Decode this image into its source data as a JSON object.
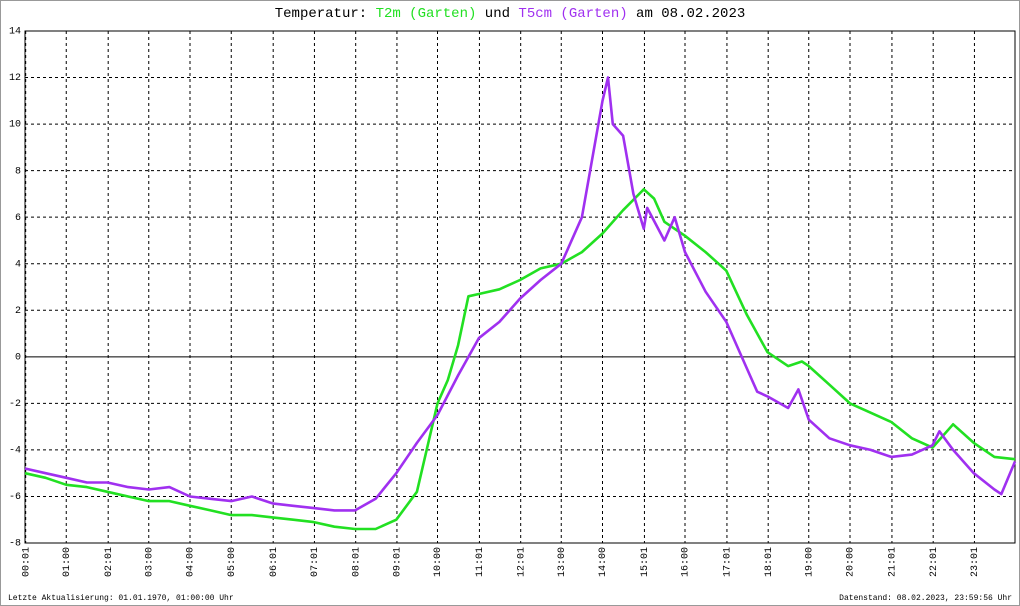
{
  "chart_data": {
    "type": "line",
    "title": "Temperatur:",
    "title_joiner": "und",
    "title_suffix": "am 08.02.2023",
    "footer_left": "Letzte Aktualisierung: 01.01.1970, 01:00:00 Uhr",
    "footer_right": "Datenstand: 08.02.2023, 23:59:56 Uhr",
    "xlim": [
      0,
      1440
    ],
    "ylim": [
      -8,
      14
    ],
    "yticks": [
      -8,
      -6,
      -4,
      -2,
      0,
      2,
      4,
      6,
      8,
      10,
      12,
      14
    ],
    "xticks": [
      {
        "value": 1,
        "label": "00:01"
      },
      {
        "value": 60,
        "label": "01:00"
      },
      {
        "value": 121,
        "label": "02:01"
      },
      {
        "value": 180,
        "label": "03:00"
      },
      {
        "value": 240,
        "label": "04:00"
      },
      {
        "value": 300,
        "label": "05:00"
      },
      {
        "value": 361,
        "label": "06:01"
      },
      {
        "value": 421,
        "label": "07:01"
      },
      {
        "value": 481,
        "label": "08:01"
      },
      {
        "value": 541,
        "label": "09:01"
      },
      {
        "value": 600,
        "label": "10:00"
      },
      {
        "value": 661,
        "label": "11:01"
      },
      {
        "value": 721,
        "label": "12:01"
      },
      {
        "value": 780,
        "label": "13:00"
      },
      {
        "value": 840,
        "label": "14:00"
      },
      {
        "value": 901,
        "label": "15:01"
      },
      {
        "value": 960,
        "label": "16:00"
      },
      {
        "value": 1021,
        "label": "17:01"
      },
      {
        "value": 1081,
        "label": "18:01"
      },
      {
        "value": 1140,
        "label": "19:00"
      },
      {
        "value": 1200,
        "label": "20:00"
      },
      {
        "value": 1261,
        "label": "21:01"
      },
      {
        "value": 1321,
        "label": "22:01"
      },
      {
        "value": 1381,
        "label": "23:01"
      }
    ],
    "grid": true,
    "series": [
      {
        "name": "T2m (Garten)",
        "color": "#22e022",
        "x": [
          0,
          30,
          60,
          90,
          120,
          150,
          180,
          210,
          240,
          270,
          300,
          330,
          360,
          390,
          420,
          450,
          480,
          510,
          540,
          570,
          600,
          615,
          630,
          645,
          660,
          690,
          720,
          750,
          780,
          810,
          840,
          870,
          900,
          915,
          930,
          960,
          990,
          1020,
          1050,
          1080,
          1110,
          1130,
          1140,
          1170,
          1200,
          1230,
          1260,
          1290,
          1320,
          1350,
          1380,
          1410,
          1440
        ],
        "values": [
          -5.0,
          -5.2,
          -5.5,
          -5.6,
          -5.8,
          -6.0,
          -6.2,
          -6.2,
          -6.4,
          -6.6,
          -6.8,
          -6.8,
          -6.9,
          -7.0,
          -7.1,
          -7.3,
          -7.4,
          -7.4,
          -7.0,
          -5.8,
          -2.0,
          -1.0,
          0.5,
          2.6,
          2.7,
          2.9,
          3.3,
          3.8,
          4.0,
          4.5,
          5.3,
          6.3,
          7.2,
          6.8,
          5.8,
          5.2,
          4.5,
          3.7,
          1.8,
          0.2,
          -0.4,
          -0.2,
          -0.4,
          -1.2,
          -2.0,
          -2.4,
          -2.8,
          -3.5,
          -3.9,
          -2.9,
          -3.7,
          -4.3,
          -4.4
        ]
      },
      {
        "name": "T5cm (Garten)",
        "color": "#a030f0",
        "x": [
          0,
          30,
          60,
          90,
          120,
          150,
          180,
          210,
          240,
          270,
          300,
          330,
          360,
          390,
          420,
          450,
          480,
          510,
          540,
          570,
          600,
          630,
          660,
          690,
          720,
          750,
          780,
          810,
          825,
          840,
          848,
          855,
          870,
          885,
          900,
          905,
          930,
          945,
          960,
          990,
          1020,
          1050,
          1065,
          1080,
          1110,
          1125,
          1140,
          1170,
          1200,
          1230,
          1260,
          1290,
          1320,
          1330,
          1350,
          1380,
          1410,
          1420,
          1440
        ],
        "values": [
          -4.8,
          -5.0,
          -5.2,
          -5.4,
          -5.4,
          -5.6,
          -5.7,
          -5.6,
          -6.0,
          -6.1,
          -6.2,
          -6.0,
          -6.3,
          -6.4,
          -6.5,
          -6.6,
          -6.6,
          -6.1,
          -5.0,
          -3.7,
          -2.5,
          -0.8,
          0.8,
          1.5,
          2.5,
          3.3,
          4.0,
          6.0,
          8.5,
          11.0,
          12.0,
          10.0,
          9.5,
          7.0,
          5.5,
          6.4,
          5.0,
          6.0,
          4.5,
          2.8,
          1.5,
          -0.5,
          -1.5,
          -1.7,
          -2.2,
          -1.4,
          -2.7,
          -3.5,
          -3.8,
          -4.0,
          -4.3,
          -4.2,
          -3.8,
          -3.2,
          -4.0,
          -5.0,
          -5.7,
          -5.9,
          -4.5
        ]
      }
    ]
  }
}
